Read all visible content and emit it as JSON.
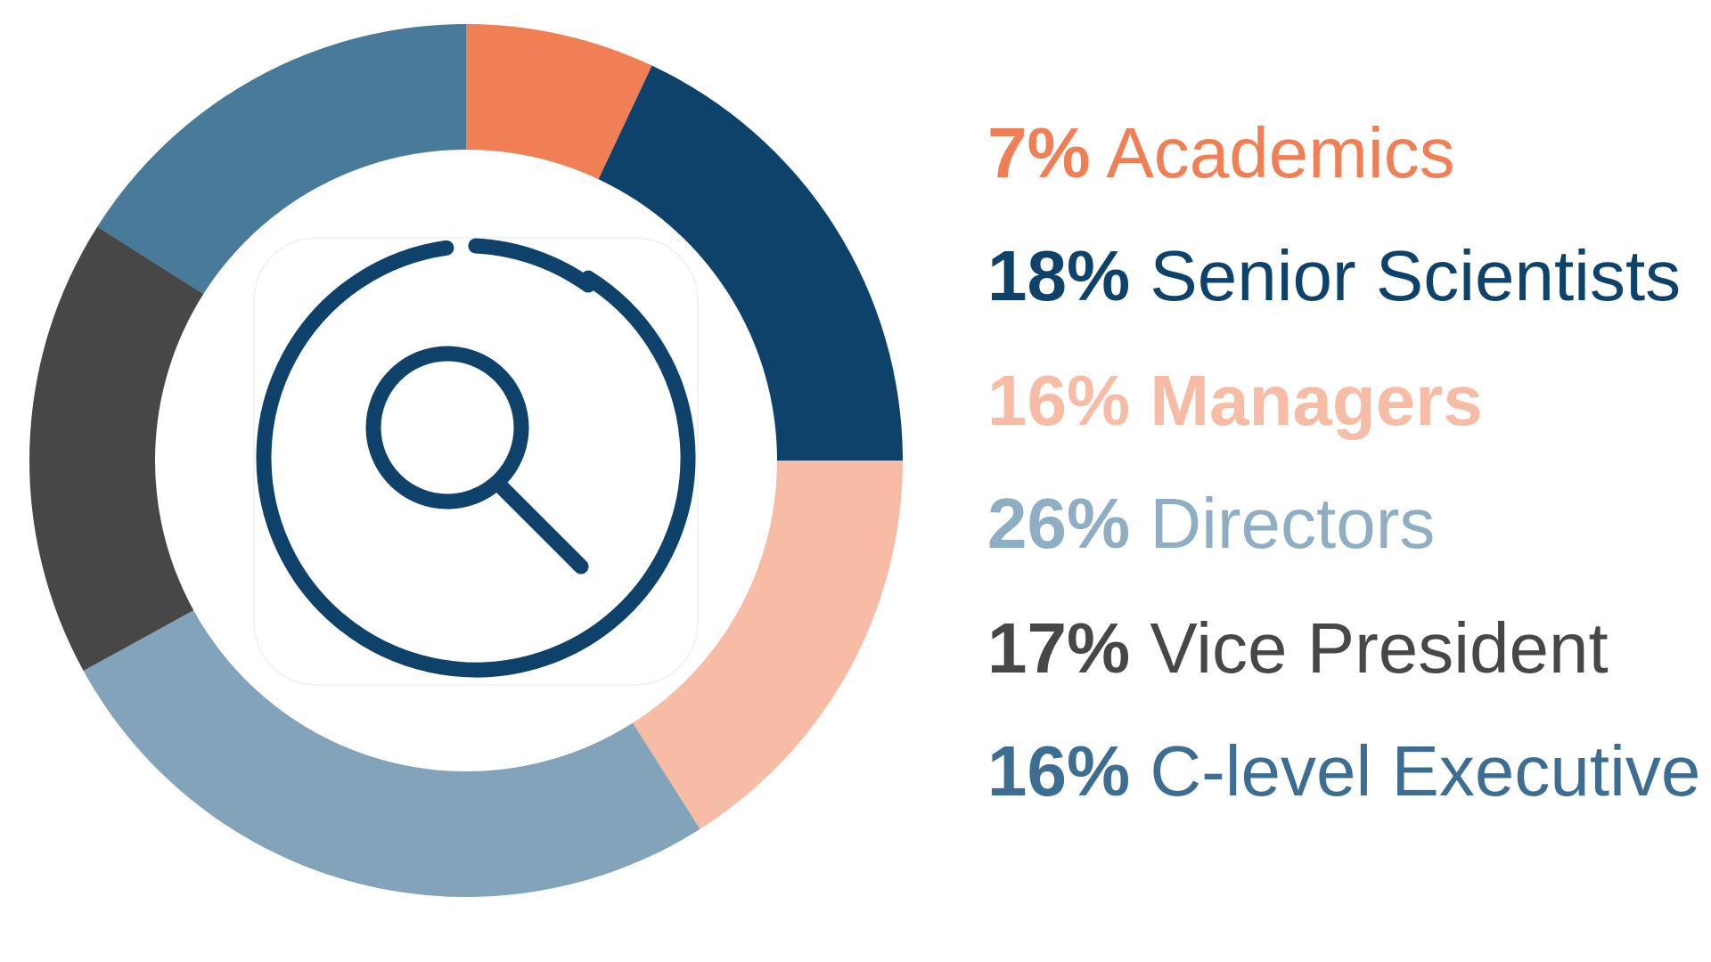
{
  "chart_data": {
    "type": "donut",
    "title": "",
    "start": "top",
    "direction": "clockwise",
    "center_icon": "magnifying-glass-icon",
    "slices": [
      {
        "pct_label": "7%",
        "label": "Academics",
        "value": 7,
        "color": "#F07F55",
        "text_color": "#F07F55",
        "label_bold": false
      },
      {
        "pct_label": "18%",
        "label": "Senior Scientists",
        "value": 18,
        "color": "#0E426B",
        "text_color": "#0E426B",
        "label_bold": false
      },
      {
        "pct_label": "16%",
        "label": "Managers",
        "value": 16,
        "color": "#F7BCA5",
        "text_color": "#F7BCA5",
        "label_bold": true
      },
      {
        "pct_label": "26%",
        "label": "Directors",
        "value": 26,
        "color": "#82A3BA",
        "text_color": "#8FAEC3",
        "label_bold": false
      },
      {
        "pct_label": "17%",
        "label": "Vice President",
        "value": 17,
        "color": "#474747",
        "text_color": "#474747",
        "label_bold": false
      },
      {
        "pct_label": "16%",
        "label": "C-level Executive",
        "value": 16,
        "color": "#4A7A9A",
        "text_color": "#3D6E92",
        "label_bold": false
      }
    ]
  }
}
